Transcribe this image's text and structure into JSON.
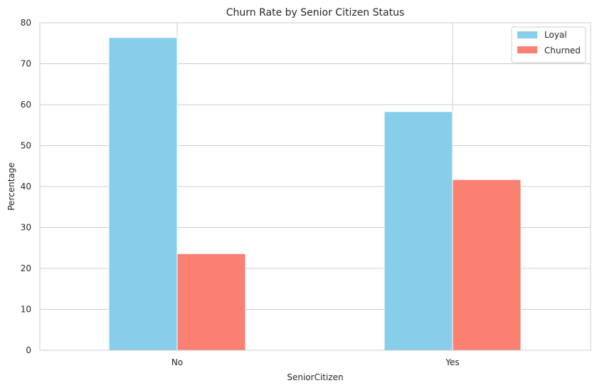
{
  "chart_data": {
    "type": "bar",
    "title": "Churn Rate by Senior Citizen Status",
    "xlabel": "SeniorCitizen",
    "ylabel": "Percentage",
    "categories": [
      "No",
      "Yes"
    ],
    "series": [
      {
        "name": "Loyal",
        "color": "#87CEEB",
        "values": [
          76.4,
          58.3
        ]
      },
      {
        "name": "Churned",
        "color": "#FA8072",
        "values": [
          23.6,
          41.7
        ]
      }
    ],
    "ylim": [
      0,
      80
    ],
    "yticks": [
      0,
      10,
      20,
      30,
      40,
      50,
      60,
      70,
      80
    ],
    "grid": true,
    "legend": "top-right"
  }
}
